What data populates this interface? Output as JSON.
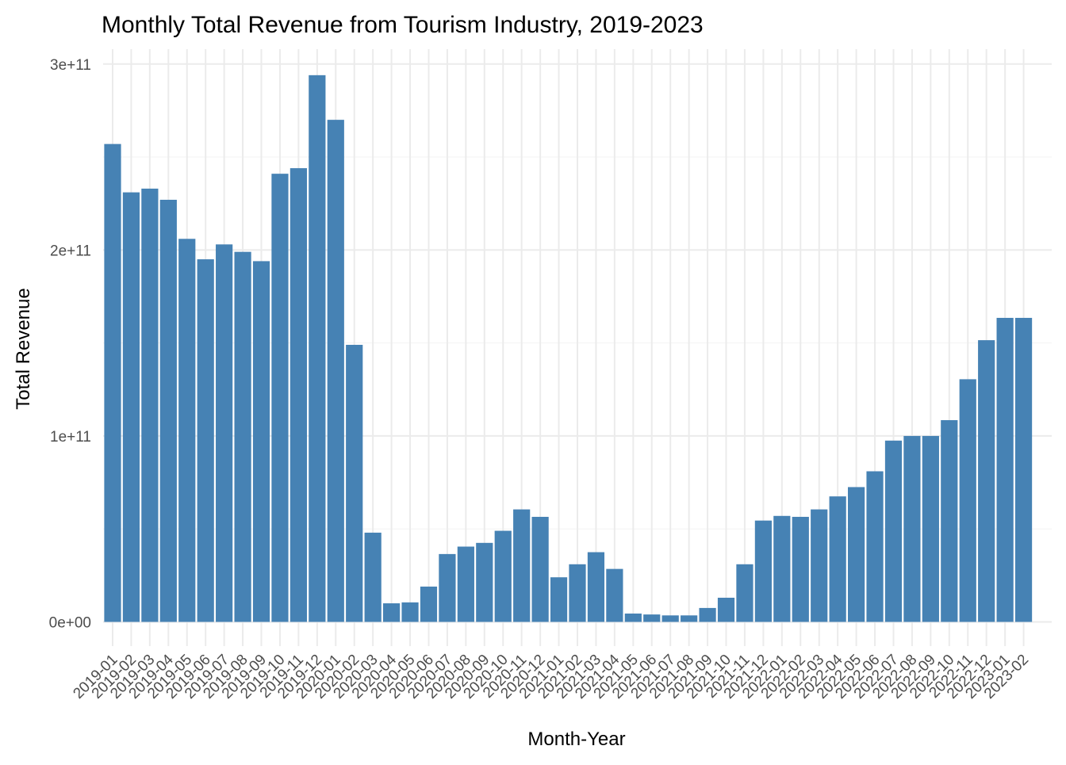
{
  "chart_data": {
    "type": "bar",
    "title": "Monthly Total Revenue from Tourism Industry, 2019-2023",
    "xlabel": "Month-Year",
    "ylabel": "Total Revenue",
    "categories": [
      "2019-01",
      "2019-02",
      "2019-03",
      "2019-04",
      "2019-05",
      "2019-06",
      "2019-07",
      "2019-08",
      "2019-09",
      "2019-10",
      "2019-11",
      "2019-12",
      "2020-01",
      "2020-02",
      "2020-03",
      "2020-04",
      "2020-05",
      "2020-06",
      "2020-07",
      "2020-08",
      "2020-09",
      "2020-10",
      "2020-11",
      "2020-12",
      "2021-01",
      "2021-02",
      "2021-03",
      "2021-04",
      "2021-05",
      "2021-06",
      "2021-07",
      "2021-08",
      "2021-09",
      "2021-10",
      "2021-11",
      "2021-12",
      "2022-01",
      "2022-02",
      "2022-03",
      "2022-04",
      "2022-05",
      "2022-06",
      "2022-07",
      "2022-08",
      "2022-09",
      "2022-10",
      "2022-11",
      "2022-12",
      "2023-01",
      "2023-02"
    ],
    "values": [
      257000000000,
      231000000000,
      233000000000,
      227000000000,
      206000000000,
      195000000000,
      203000000000,
      199000000000,
      194000000000,
      241000000000,
      244000000000,
      294000000000,
      270000000000,
      149000000000,
      48000000000,
      10000000000,
      10500000000,
      19000000000,
      36500000000,
      40500000000,
      42500000000,
      49000000000,
      60500000000,
      56500000000,
      24000000000,
      31000000000,
      37500000000,
      28500000000,
      4500000000,
      4000000000,
      3500000000,
      3500000000,
      7500000000,
      13000000000,
      31000000000,
      54500000000,
      57000000000,
      56500000000,
      60500000000,
      67500000000,
      72500000000,
      81000000000,
      97500000000,
      100000000000,
      100000000000,
      108500000000,
      130500000000,
      151500000000,
      163500000000,
      163500000000
    ],
    "y_ticks": [
      0,
      100000000000,
      200000000000,
      300000000000
    ],
    "y_tick_labels": [
      "0e+00",
      "1e+11",
      "2e+11",
      "3e+11"
    ],
    "ylim": [
      -13000000000,
      308000000000
    ],
    "grid": true,
    "bar_color": "#4682B4",
    "legend": "none"
  }
}
